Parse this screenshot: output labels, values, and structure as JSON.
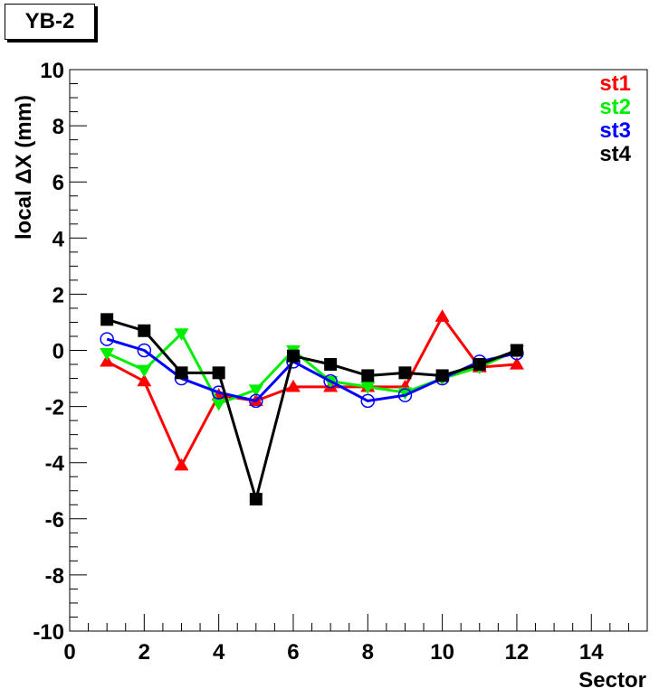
{
  "chart_data": {
    "type": "line",
    "title": "YB-2",
    "xlabel": "Sector",
    "ylabel": "local ΔX (mm)",
    "xlim": [
      0,
      15.5
    ],
    "ylim": [
      -10,
      10
    ],
    "x_ticks": [
      0,
      2,
      4,
      6,
      8,
      10,
      12,
      14
    ],
    "y_ticks": [
      -10,
      -8,
      -6,
      -4,
      -2,
      0,
      2,
      4,
      6,
      8,
      10
    ],
    "grid": false,
    "legend_position": "top-right",
    "series": [
      {
        "name": "st1",
        "color": "#ff0000",
        "marker": "triangle-up",
        "x": [
          1,
          2,
          3,
          4,
          5,
          6,
          7,
          8,
          9,
          10,
          11,
          12
        ],
        "y": [
          -0.4,
          -1.1,
          -4.1,
          -1.6,
          -1.8,
          -1.3,
          -1.3,
          -1.3,
          -1.3,
          1.2,
          -0.6,
          -0.5
        ]
      },
      {
        "name": "st2",
        "color": "#00ee00",
        "marker": "triangle-down",
        "x": [
          1,
          2,
          3,
          4,
          5,
          6,
          7,
          8,
          9,
          10,
          11,
          12
        ],
        "y": [
          -0.1,
          -0.7,
          0.6,
          -1.9,
          -1.4,
          0.0,
          -1.1,
          -1.3,
          -1.5,
          -1.0,
          -0.6,
          0.0
        ]
      },
      {
        "name": "st3",
        "color": "#0000ff",
        "marker": "circle-open",
        "x": [
          1,
          2,
          3,
          4,
          5,
          6,
          7,
          8,
          9,
          10,
          11,
          12
        ],
        "y": [
          0.4,
          0.0,
          -1.0,
          -1.5,
          -1.8,
          -0.4,
          -1.1,
          -1.8,
          -1.6,
          -1.0,
          -0.4,
          -0.1
        ]
      },
      {
        "name": "st4",
        "color": "#000000",
        "marker": "square",
        "x": [
          1,
          2,
          3,
          4,
          5,
          6,
          7,
          8,
          9,
          10,
          11,
          12
        ],
        "y": [
          1.1,
          0.7,
          -0.8,
          -0.8,
          -5.3,
          -0.2,
          -0.5,
          -0.9,
          -0.8,
          -0.9,
          -0.5,
          0.0
        ]
      }
    ]
  }
}
